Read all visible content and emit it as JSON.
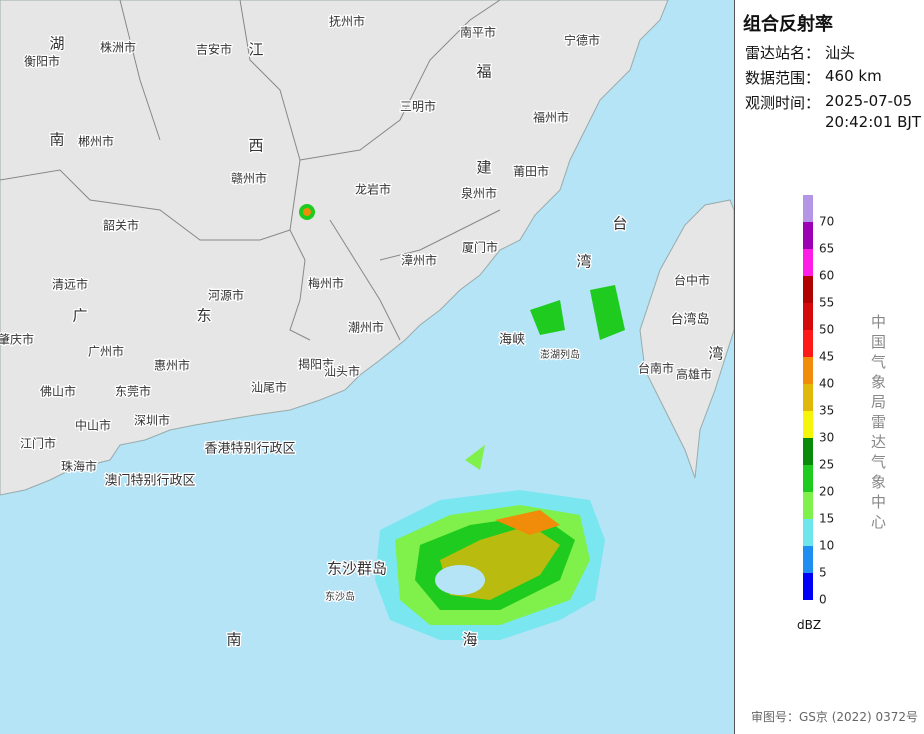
{
  "panel": {
    "title": "组合反射率",
    "station_label": "雷达站名：",
    "station": "汕头",
    "range_label": "数据范围：",
    "range": "460 km",
    "time_label": "观测时间：",
    "date": "2025-07-05",
    "time": "20:42:01 BJT"
  },
  "legend": {
    "unit": "dBZ",
    "source": "中国气象局雷达气象中心",
    "levels": [
      {
        "value": 0,
        "color": "#0000f6"
      },
      {
        "value": 5,
        "color": "#1e8ff0"
      },
      {
        "value": 10,
        "color": "#6fe6ee"
      },
      {
        "value": 15,
        "color": "#80f04a"
      },
      {
        "value": 20,
        "color": "#1ecb1e"
      },
      {
        "value": 25,
        "color": "#0a8a0a"
      },
      {
        "value": 30,
        "color": "#f5f50a"
      },
      {
        "value": 35,
        "color": "#e0b80a"
      },
      {
        "value": 40,
        "color": "#f08c0a"
      },
      {
        "value": 45,
        "color": "#ff1a1a"
      },
      {
        "value": 50,
        "color": "#d40a0a"
      },
      {
        "value": 55,
        "color": "#b00000"
      },
      {
        "value": 60,
        "color": "#ff1ee6"
      },
      {
        "value": 65,
        "color": "#9a00b4"
      },
      {
        "value": 70,
        "color": "#b496e6"
      }
    ]
  },
  "footer": "审图号：GS京 (2022) 0372号",
  "map_labels": [
    "湖",
    "衡阳市",
    "株洲市",
    "吉安市",
    "江",
    "抚州市",
    "南平市",
    "宁德市",
    "福",
    "三明市",
    "福州市",
    "南",
    "郴州市",
    "西",
    "赣州市",
    "龙岩市",
    "建",
    "莆田市",
    "泉州市",
    "韶关市",
    "厦门市",
    "台",
    "湾",
    "台中市",
    "台湾岛",
    "漳州市",
    "梅州市",
    "清远市",
    "河源市",
    "广",
    "东",
    "肇庆市",
    "广州市",
    "惠州市",
    "潮州市",
    "揭阳市",
    "汕头市",
    "汕尾市",
    "佛山市",
    "东莞市",
    "深圳市",
    "中山市",
    "江门市",
    "珠海市",
    "香港特别行政区",
    "澳门特别行政区",
    "海峡",
    "澎湖列岛",
    "台南市",
    "高雄市",
    "湾",
    "东沙群岛",
    "东沙岛",
    "南",
    "海"
  ]
}
